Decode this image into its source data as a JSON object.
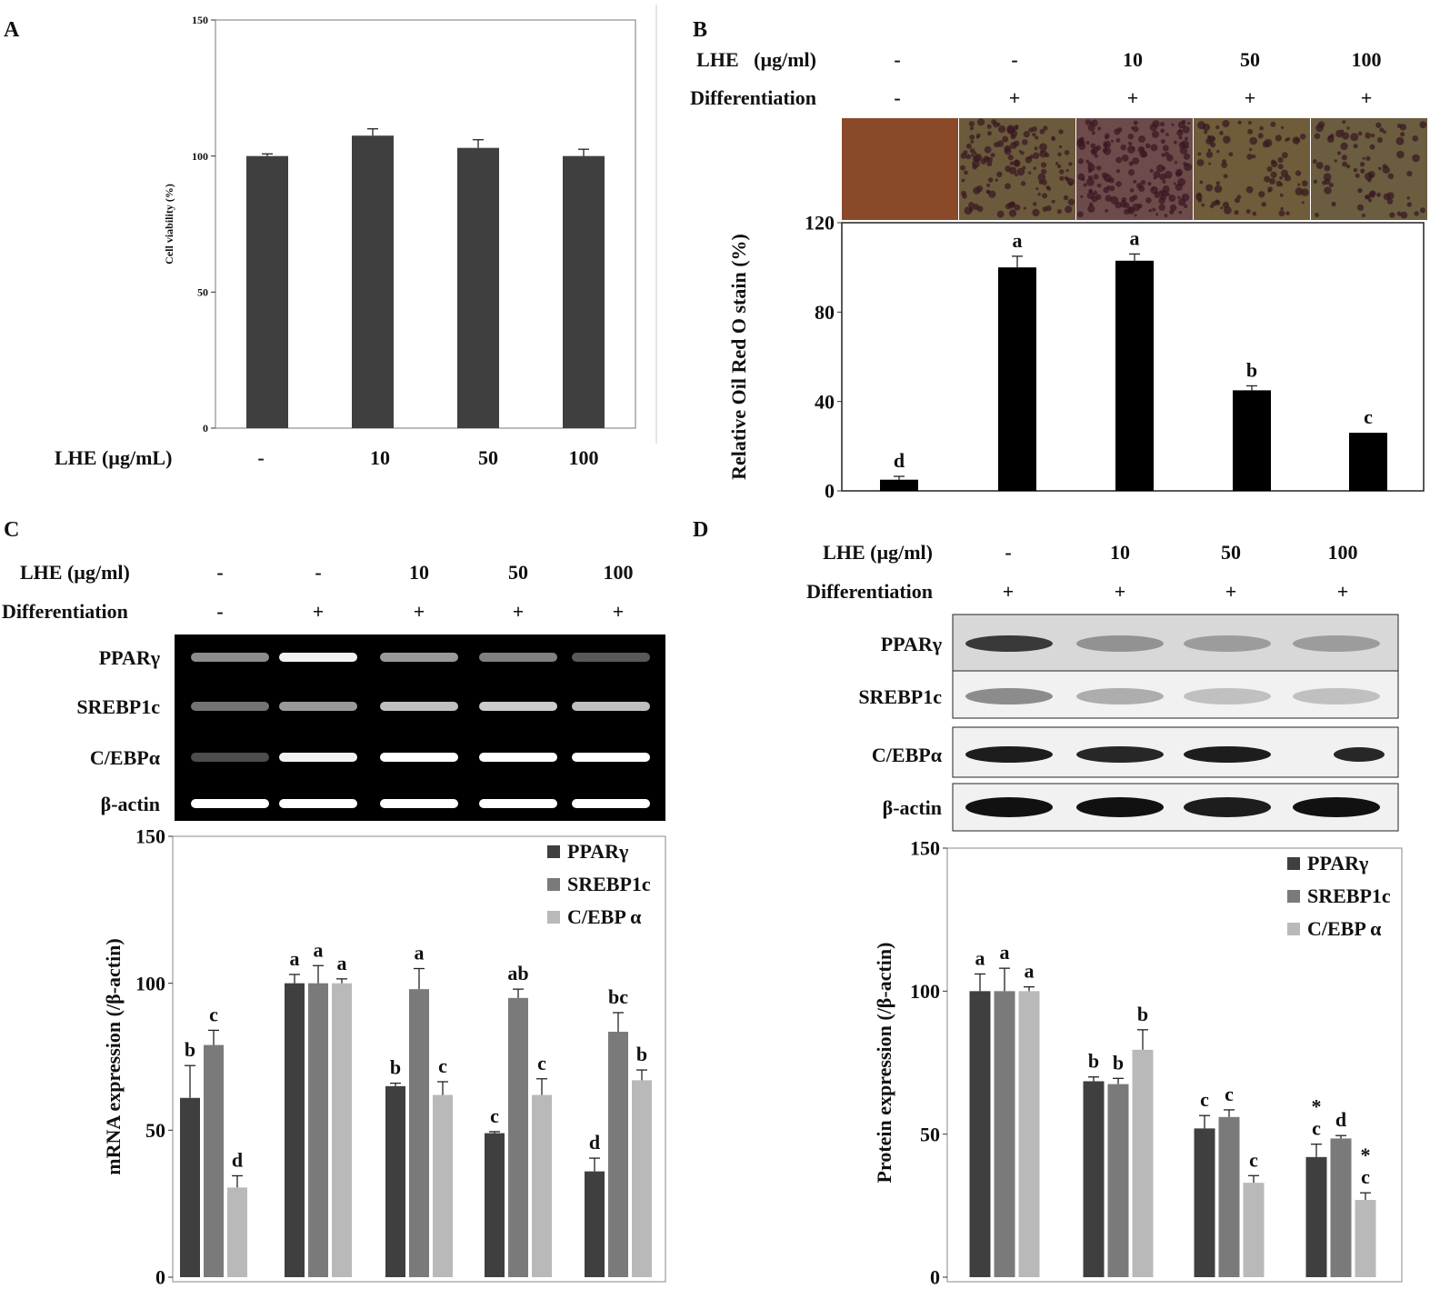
{
  "panel_labels": {
    "a": "A",
    "b": "B",
    "c": "C",
    "d": "D"
  },
  "colors": {
    "dark": "#3f3f3f",
    "mid": "#7a7a7a",
    "light": "#b9b9b9",
    "black": "#000000"
  },
  "panelA": {
    "row_label": "LHE (µg/mL)",
    "row_values": [
      "-",
      "10",
      "50",
      "100"
    ]
  },
  "panelB": {
    "rows": [
      {
        "label": "LHE   (µg/ml)",
        "values": [
          "-",
          "-",
          "10",
          "50",
          "100"
        ]
      },
      {
        "label": "Differentiation",
        "values": [
          "-",
          "+",
          "+",
          "+",
          "+"
        ]
      }
    ],
    "stain_colors": [
      "#8a4a2a",
      "#6b5a3c",
      "#6d4b4b",
      "#6e5c3a",
      "#6a5d40"
    ]
  },
  "panelC": {
    "rows": [
      {
        "label": "LHE (µg/ml)",
        "values": [
          "-",
          "-",
          "10",
          "50",
          "100"
        ]
      },
      {
        "label": "Differentiation",
        "values": [
          "-",
          "+",
          "+",
          "+",
          "+"
        ]
      }
    ],
    "gel_labels": [
      "PPARγ",
      "SREBP1c",
      "C/EBPα",
      "β-actin"
    ]
  },
  "panelD": {
    "rows": [
      {
        "label": "LHE (µg/ml)",
        "values": [
          "-",
          "10",
          "50",
          "100"
        ]
      },
      {
        "label": "Differentiation",
        "values": [
          "+",
          "+",
          "+",
          "+"
        ]
      }
    ],
    "blot_labels": [
      "PPARγ",
      "SREBP1c",
      "C/EBPα",
      "β-actin"
    ]
  },
  "chart_data": [
    {
      "id": "A",
      "type": "bar",
      "categories": [
        "-",
        "10",
        "50",
        "100"
      ],
      "values": [
        100,
        107.5,
        103,
        100
      ],
      "errors": [
        0.8,
        2.5,
        3,
        2.5
      ],
      "ylabel": "Cell viability (%)",
      "ylim": [
        0,
        150
      ],
      "yticks": [
        "0",
        "50",
        "100",
        "150"
      ],
      "grid": false
    },
    {
      "id": "B",
      "type": "bar",
      "categories": [
        "-/-",
        "-/+",
        "10/+",
        "50/+",
        "100/+"
      ],
      "values": [
        5,
        100,
        103,
        45,
        26
      ],
      "errors": [
        1.5,
        5,
        3,
        2,
        0
      ],
      "letters": [
        "d",
        "a",
        "a",
        "b",
        "c"
      ],
      "ylabel": "Relative Oil Red O stain (%)",
      "ylim": [
        0,
        120
      ],
      "yticks": [
        "0",
        "40",
        "80",
        "120"
      ],
      "grid": false
    },
    {
      "id": "C",
      "type": "bar",
      "ylabel": "mRNA expression (/β-actin)",
      "ylim": [
        0,
        150
      ],
      "yticks": [
        "0",
        "50",
        "100",
        "150"
      ],
      "legend_position": "top-right",
      "grid": false,
      "series": [
        {
          "name": "PPARγ",
          "values": [
            61,
            100,
            65,
            49,
            36
          ],
          "errors": [
            11,
            3,
            1,
            0.5,
            4.5
          ],
          "letters": [
            "b",
            "a",
            "b",
            "c",
            "d"
          ]
        },
        {
          "name": "SREBP1c",
          "values": [
            79,
            100,
            98,
            95,
            83.5
          ],
          "errors": [
            5,
            6,
            7,
            3,
            6.5
          ],
          "letters": [
            "c",
            "a",
            "a",
            "ab",
            "bc"
          ]
        },
        {
          "name": "C/EBP α",
          "values": [
            30.5,
            100,
            62,
            62,
            67
          ],
          "errors": [
            4,
            1.5,
            4.5,
            5.5,
            3.5
          ],
          "letters": [
            "d",
            "a",
            "c",
            "c",
            "b"
          ]
        }
      ]
    },
    {
      "id": "D",
      "type": "bar",
      "ylabel": "Protein expression (/β-actin)",
      "ylim": [
        0,
        150
      ],
      "yticks": [
        "0",
        "50",
        "100",
        "150"
      ],
      "legend_position": "top-right",
      "grid": false,
      "series": [
        {
          "name": "PPARγ",
          "values": [
            100,
            68.5,
            52,
            42
          ],
          "errors": [
            6,
            1.5,
            4.5,
            4.5
          ],
          "letters": [
            "a",
            "b",
            "c",
            "*\nc"
          ]
        },
        {
          "name": "SREBP1c",
          "values": [
            100,
            67.5,
            56,
            48.5
          ],
          "errors": [
            8,
            2,
            2.5,
            1
          ],
          "letters": [
            "a",
            "b",
            "c",
            "d"
          ]
        },
        {
          "name": "C/EBP α",
          "values": [
            100,
            79.5,
            33,
            27
          ],
          "errors": [
            1.5,
            7,
            2.5,
            2.5
          ],
          "letters": [
            "a",
            "b",
            "c",
            "*\nc"
          ]
        }
      ]
    }
  ]
}
